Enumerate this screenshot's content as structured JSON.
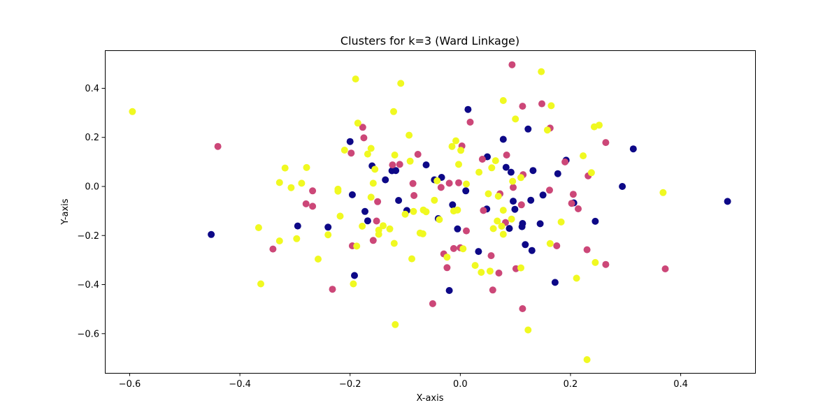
{
  "chart_data": {
    "type": "scatter",
    "title": "Clusters for k=3 (Ward Linkage)",
    "xlabel": "X-axis",
    "ylabel": "Y-axis",
    "xlim": [
      -0.645,
      0.535
    ],
    "ylim": [
      -0.76,
      0.555
    ],
    "xticks": [
      -0.6,
      -0.4,
      -0.2,
      0.0,
      0.2,
      0.4
    ],
    "xtick_labels": [
      "−0.6",
      "−0.4",
      "−0.2",
      "0.0",
      "0.2",
      "0.4"
    ],
    "yticks": [
      -0.6,
      -0.4,
      -0.2,
      0.0,
      0.2,
      0.4
    ],
    "ytick_labels": [
      "−0.6",
      "−0.4",
      "−0.2",
      "0.0",
      "0.2",
      "0.4"
    ],
    "grid": false,
    "legend": "none",
    "colors": {
      "cluster-1": "#0d0887",
      "cluster-2": "#cc4778",
      "cluster-3": "#f0f921"
    },
    "series": [
      {
        "color_key": "cluster-1",
        "points": [
          [
            -0.452,
            -0.196
          ],
          [
            -0.295,
            -0.161
          ],
          [
            -0.24,
            -0.166
          ],
          [
            -0.2,
            0.183
          ],
          [
            -0.196,
            -0.034
          ],
          [
            -0.192,
            -0.363
          ],
          [
            -0.173,
            -0.102
          ],
          [
            -0.168,
            -0.14
          ],
          [
            -0.16,
            0.084
          ],
          [
            -0.136,
            0.027
          ],
          [
            -0.124,
            0.064
          ],
          [
            -0.117,
            0.065
          ],
          [
            -0.112,
            -0.057
          ],
          [
            -0.097,
            -0.098
          ],
          [
            -0.062,
            0.088
          ],
          [
            -0.047,
            0.027
          ],
          [
            -0.04,
            -0.131
          ],
          [
            -0.034,
            0.037
          ],
          [
            -0.02,
            -0.424
          ],
          [
            -0.014,
            -0.075
          ],
          [
            -0.005,
            -0.173
          ],
          [
            0.01,
            -0.018
          ],
          [
            0.014,
            0.314
          ],
          [
            0.033,
            -0.265
          ],
          [
            0.048,
            -0.092
          ],
          [
            0.049,
            0.121
          ],
          [
            0.078,
            0.192
          ],
          [
            0.083,
            0.078
          ],
          [
            0.089,
            -0.171
          ],
          [
            0.092,
            0.058
          ],
          [
            0.096,
            -0.06
          ],
          [
            0.099,
            -0.093
          ],
          [
            0.112,
            -0.164
          ],
          [
            0.113,
            -0.151
          ],
          [
            0.118,
            -0.237
          ],
          [
            0.123,
            0.234
          ],
          [
            0.128,
            -0.056
          ],
          [
            0.13,
            -0.261
          ],
          [
            0.132,
            0.065
          ],
          [
            0.145,
            -0.152
          ],
          [
            0.15,
            -0.035
          ],
          [
            0.172,
            -0.391
          ],
          [
            0.177,
            0.052
          ],
          [
            0.192,
            0.107
          ],
          [
            0.206,
            -0.067
          ],
          [
            0.245,
            -0.142
          ],
          [
            0.294,
            0.0
          ],
          [
            0.314,
            0.153
          ],
          [
            0.485,
            -0.061
          ]
        ]
      },
      {
        "color_key": "cluster-2",
        "points": [
          [
            -0.44,
            0.163
          ],
          [
            -0.34,
            -0.255
          ],
          [
            -0.28,
            -0.071
          ],
          [
            -0.268,
            -0.081
          ],
          [
            -0.268,
            -0.018
          ],
          [
            -0.232,
            -0.419
          ],
          [
            -0.198,
            0.136
          ],
          [
            -0.196,
            -0.242
          ],
          [
            -0.177,
            0.241
          ],
          [
            -0.175,
            0.198
          ],
          [
            -0.158,
            -0.22
          ],
          [
            -0.152,
            -0.141
          ],
          [
            -0.15,
            -0.062
          ],
          [
            -0.123,
            0.088
          ],
          [
            -0.11,
            0.09
          ],
          [
            -0.084,
            -0.037
          ],
          [
            -0.086,
            0.012
          ],
          [
            -0.077,
            0.131
          ],
          [
            -0.05,
            -0.478
          ],
          [
            -0.035,
            -0.004
          ],
          [
            -0.03,
            -0.275
          ],
          [
            -0.024,
            -0.331
          ],
          [
            -0.02,
            0.013
          ],
          [
            -0.012,
            -0.253
          ],
          [
            0.0,
            -0.25
          ],
          [
            -0.003,
            0.015
          ],
          [
            0.003,
            0.165
          ],
          [
            0.011,
            -0.181
          ],
          [
            0.018,
            0.262
          ],
          [
            0.04,
            0.111
          ],
          [
            0.042,
            -0.098
          ],
          [
            0.056,
            -0.282
          ],
          [
            0.059,
            -0.422
          ],
          [
            0.07,
            -0.353
          ],
          [
            0.072,
            -0.03
          ],
          [
            0.082,
            -0.147
          ],
          [
            0.084,
            0.128
          ],
          [
            0.094,
            0.496
          ],
          [
            0.096,
            -0.004
          ],
          [
            0.101,
            -0.335
          ],
          [
            0.111,
            -0.075
          ],
          [
            0.113,
            -0.498
          ],
          [
            0.113,
            0.327
          ],
          [
            0.114,
            0.048
          ],
          [
            0.148,
            0.337
          ],
          [
            0.162,
            -0.015
          ],
          [
            0.163,
            0.238
          ],
          [
            0.175,
            -0.242
          ],
          [
            0.19,
            0.1
          ],
          [
            0.202,
            -0.069
          ],
          [
            0.205,
            -0.032
          ],
          [
            0.214,
            -0.091
          ],
          [
            0.23,
            -0.258
          ],
          [
            0.232,
            0.043
          ],
          [
            0.264,
            -0.318
          ],
          [
            0.264,
            0.179
          ],
          [
            0.372,
            -0.336
          ]
        ]
      },
      {
        "color_key": "cluster-3",
        "points": [
          [
            -0.595,
            0.305
          ],
          [
            -0.366,
            -0.168
          ],
          [
            -0.362,
            -0.397
          ],
          [
            -0.328,
            0.016
          ],
          [
            -0.328,
            -0.222
          ],
          [
            -0.318,
            0.075
          ],
          [
            -0.307,
            -0.005
          ],
          [
            -0.297,
            -0.213
          ],
          [
            -0.288,
            0.013
          ],
          [
            -0.279,
            0.077
          ],
          [
            -0.258,
            -0.296
          ],
          [
            -0.24,
            -0.197
          ],
          [
            -0.222,
            -0.011
          ],
          [
            -0.222,
            -0.019
          ],
          [
            -0.218,
            -0.121
          ],
          [
            -0.21,
            0.148
          ],
          [
            -0.194,
            -0.397
          ],
          [
            -0.19,
            0.438
          ],
          [
            -0.188,
            -0.243
          ],
          [
            -0.186,
            0.258
          ],
          [
            -0.178,
            -0.162
          ],
          [
            -0.168,
            0.132
          ],
          [
            -0.162,
            0.155
          ],
          [
            -0.162,
            -0.044
          ],
          [
            -0.158,
            0.013
          ],
          [
            -0.155,
            0.07
          ],
          [
            -0.148,
            -0.178
          ],
          [
            -0.148,
            -0.195
          ],
          [
            -0.14,
            -0.16
          ],
          [
            -0.128,
            -0.173
          ],
          [
            -0.121,
            0.305
          ],
          [
            -0.12,
            -0.232
          ],
          [
            -0.119,
            0.128
          ],
          [
            -0.118,
            -0.563
          ],
          [
            -0.108,
            0.42
          ],
          [
            -0.1,
            -0.113
          ],
          [
            -0.093,
            0.209
          ],
          [
            -0.091,
            0.103
          ],
          [
            -0.088,
            -0.295
          ],
          [
            -0.085,
            -0.102
          ],
          [
            -0.073,
            -0.19
          ],
          [
            -0.068,
            -0.193
          ],
          [
            -0.067,
            -0.096
          ],
          [
            -0.062,
            -0.103
          ],
          [
            -0.047,
            -0.056
          ],
          [
            -0.042,
            0.023
          ],
          [
            -0.038,
            -0.135
          ],
          [
            -0.024,
            -0.288
          ],
          [
            -0.015,
            0.163
          ],
          [
            -0.012,
            -0.1
          ],
          [
            -0.008,
            0.186
          ],
          [
            -0.005,
            -0.096
          ],
          [
            -0.003,
            0.09
          ],
          [
            0.001,
            0.147
          ],
          [
            0.005,
            -0.254
          ],
          [
            0.011,
            0.01
          ],
          [
            0.027,
            -0.322
          ],
          [
            0.034,
            0.058
          ],
          [
            0.038,
            -0.35
          ],
          [
            0.051,
            -0.03
          ],
          [
            0.054,
            -0.345
          ],
          [
            0.057,
            0.076
          ],
          [
            0.06,
            -0.172
          ],
          [
            0.064,
            0.105
          ],
          [
            0.067,
            -0.141
          ],
          [
            0.069,
            -0.04
          ],
          [
            0.075,
            -0.162
          ],
          [
            0.078,
            -0.195
          ],
          [
            0.078,
            -0.097
          ],
          [
            0.078,
            0.35
          ],
          [
            0.093,
            -0.133
          ],
          [
            0.095,
            0.021
          ],
          [
            0.1,
            0.275
          ],
          [
            0.11,
            0.036
          ],
          [
            0.11,
            -0.332
          ],
          [
            0.123,
            -0.585
          ],
          [
            0.147,
            0.468
          ],
          [
            0.158,
            0.23
          ],
          [
            0.163,
            -0.233
          ],
          [
            0.165,
            0.329
          ],
          [
            0.183,
            -0.145
          ],
          [
            0.211,
            -0.374
          ],
          [
            0.223,
            0.125
          ],
          [
            0.23,
            -0.706
          ],
          [
            0.238,
            0.056
          ],
          [
            0.243,
            0.243
          ],
          [
            0.245,
            -0.31
          ],
          [
            0.252,
            0.25
          ],
          [
            0.368,
            -0.025
          ]
        ]
      }
    ]
  }
}
